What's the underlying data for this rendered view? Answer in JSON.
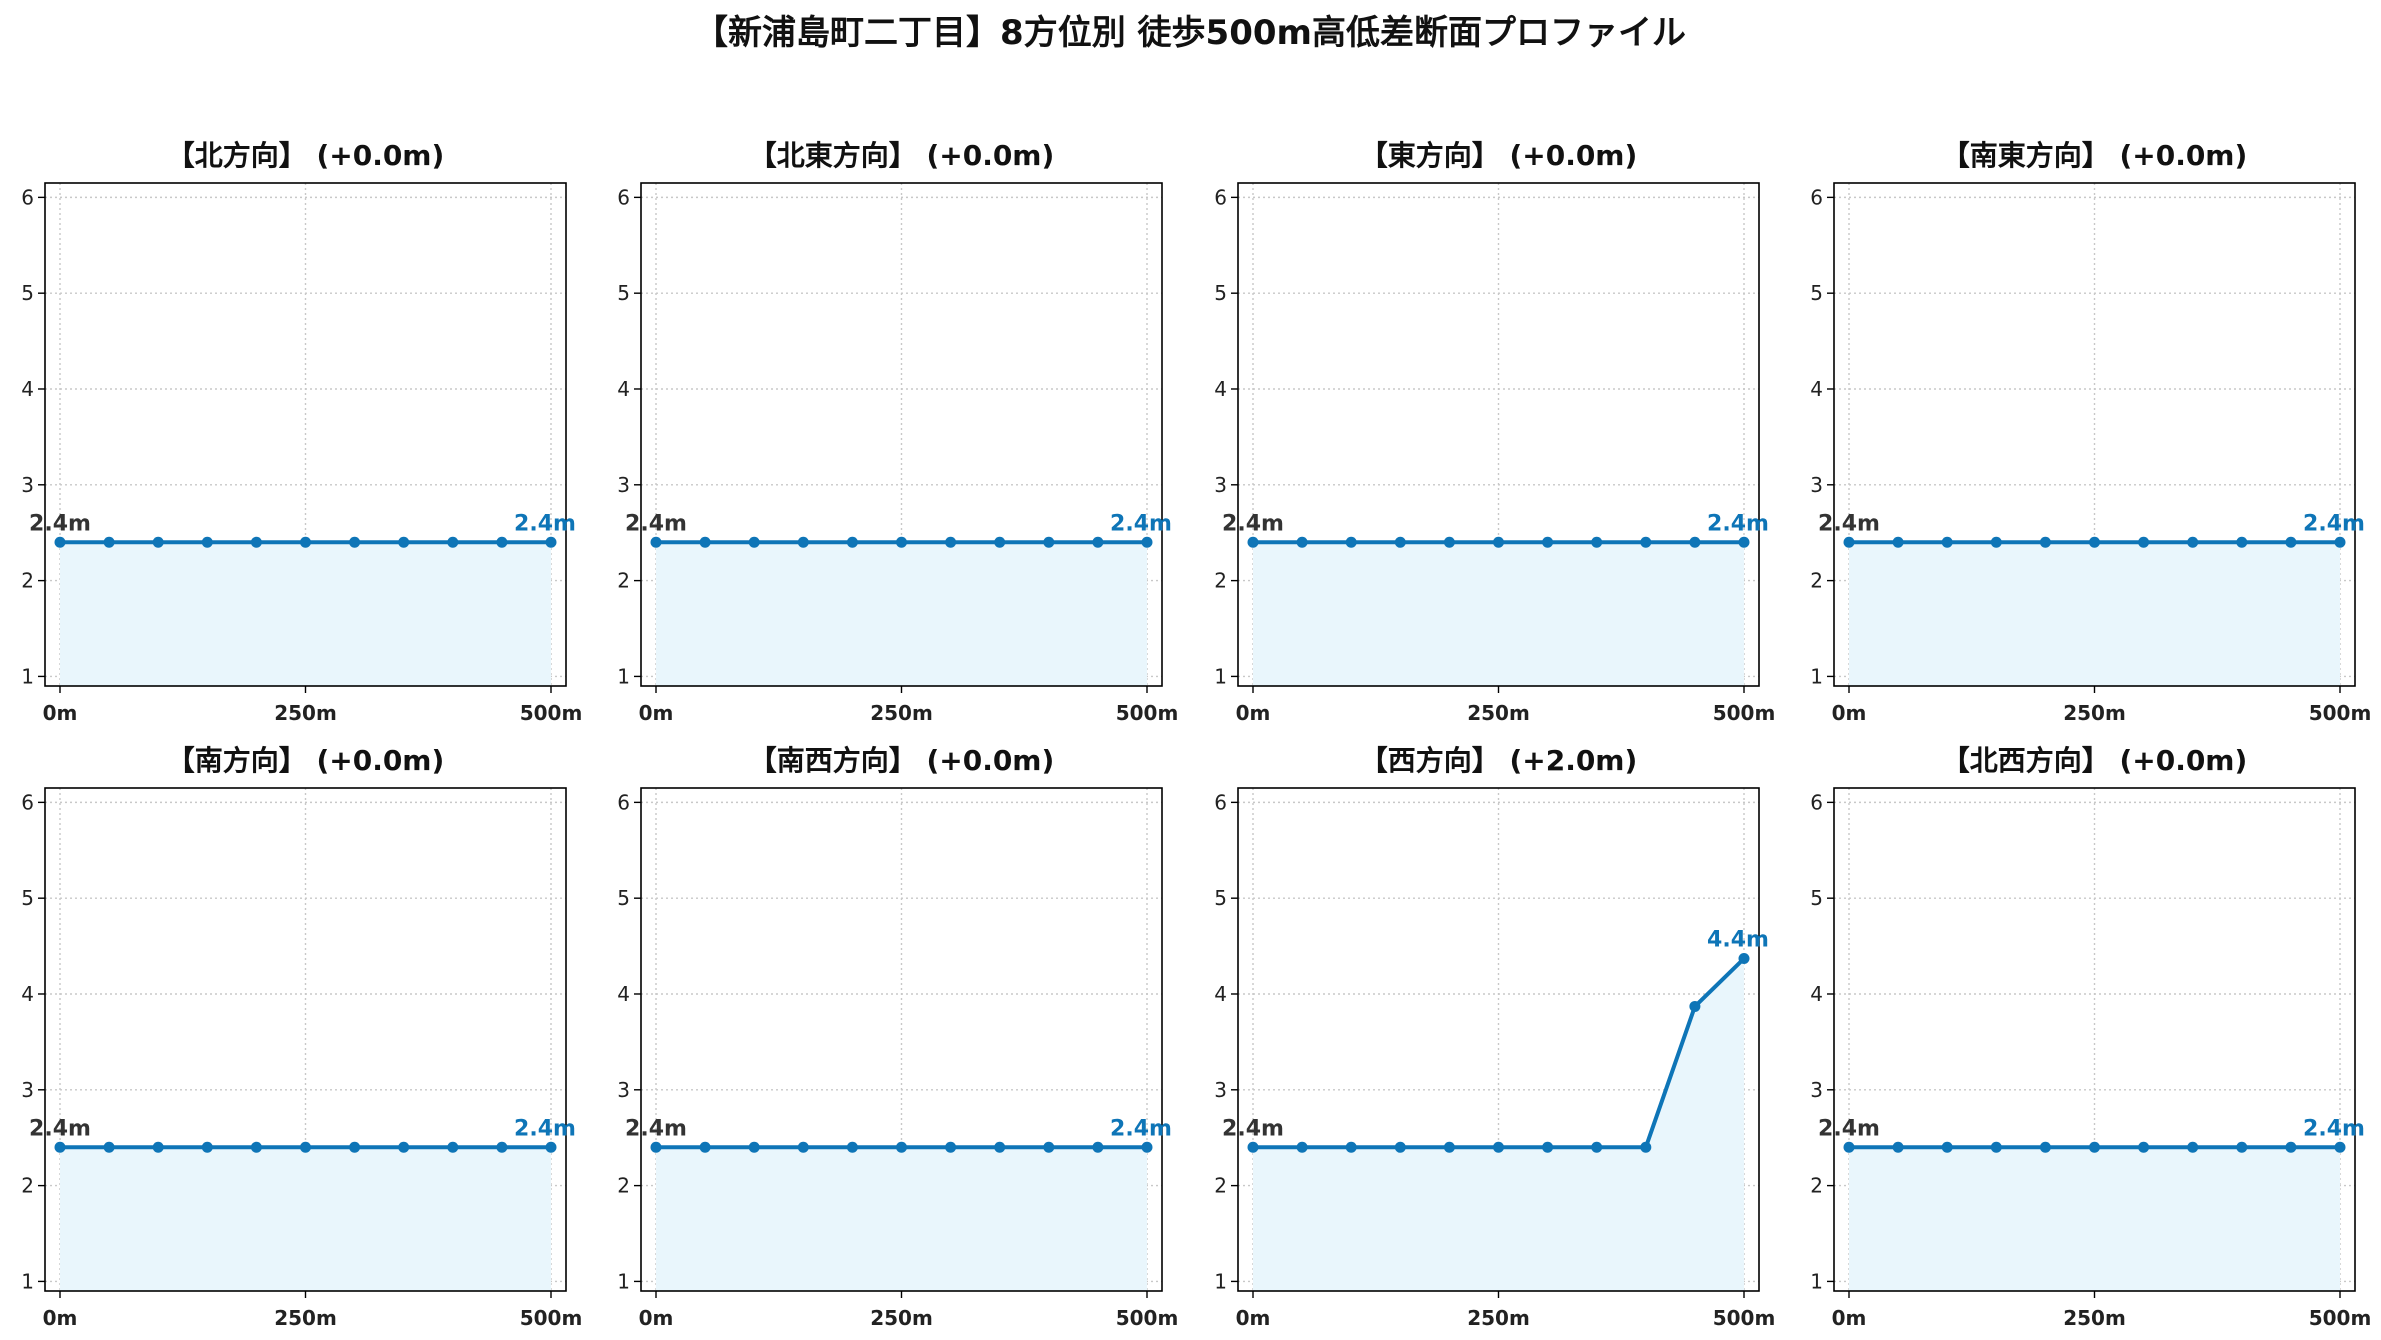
{
  "figure": {
    "title": "【新浦島町二丁目】8方位別 徒歩500m高低差断面プロファイル"
  },
  "colors": {
    "line": "#0e75b7",
    "fill": "#e9f6fc",
    "grid": "#c8c8c8",
    "axis": "#000000"
  },
  "chart_data": [
    {
      "type": "line",
      "title": "【北方向】 (+0.0m)",
      "x": [
        0,
        50,
        100,
        150,
        200,
        250,
        300,
        350,
        400,
        450,
        500
      ],
      "y": [
        2.4,
        2.4,
        2.4,
        2.4,
        2.4,
        2.4,
        2.4,
        2.4,
        2.4,
        2.4,
        2.4
      ],
      "xticks": [
        "0m",
        "250m",
        "500m"
      ],
      "yticks": [
        "1",
        "2",
        "3",
        "4",
        "5",
        "6"
      ],
      "ylim": [
        0.9,
        6.15
      ],
      "start_label": "2.4m",
      "end_label": "2.4m",
      "grid": true
    },
    {
      "type": "line",
      "title": "【北東方向】 (+0.0m)",
      "x": [
        0,
        50,
        100,
        150,
        200,
        250,
        300,
        350,
        400,
        450,
        500
      ],
      "y": [
        2.4,
        2.4,
        2.4,
        2.4,
        2.4,
        2.4,
        2.4,
        2.4,
        2.4,
        2.4,
        2.4
      ],
      "xticks": [
        "0m",
        "250m",
        "500m"
      ],
      "yticks": [
        "1",
        "2",
        "3",
        "4",
        "5",
        "6"
      ],
      "ylim": [
        0.9,
        6.15
      ],
      "start_label": "2.4m",
      "end_label": "2.4m",
      "grid": true
    },
    {
      "type": "line",
      "title": "【東方向】 (+0.0m)",
      "x": [
        0,
        50,
        100,
        150,
        200,
        250,
        300,
        350,
        400,
        450,
        500
      ],
      "y": [
        2.4,
        2.4,
        2.4,
        2.4,
        2.4,
        2.4,
        2.4,
        2.4,
        2.4,
        2.4,
        2.4
      ],
      "xticks": [
        "0m",
        "250m",
        "500m"
      ],
      "yticks": [
        "1",
        "2",
        "3",
        "4",
        "5",
        "6"
      ],
      "ylim": [
        0.9,
        6.15
      ],
      "start_label": "2.4m",
      "end_label": "2.4m",
      "grid": true
    },
    {
      "type": "line",
      "title": "【南東方向】 (+0.0m)",
      "x": [
        0,
        50,
        100,
        150,
        200,
        250,
        300,
        350,
        400,
        450,
        500
      ],
      "y": [
        2.4,
        2.4,
        2.4,
        2.4,
        2.4,
        2.4,
        2.4,
        2.4,
        2.4,
        2.4,
        2.4
      ],
      "xticks": [
        "0m",
        "250m",
        "500m"
      ],
      "yticks": [
        "1",
        "2",
        "3",
        "4",
        "5",
        "6"
      ],
      "ylim": [
        0.9,
        6.15
      ],
      "start_label": "2.4m",
      "end_label": "2.4m",
      "grid": true
    },
    {
      "type": "line",
      "title": "【南方向】 (+0.0m)",
      "x": [
        0,
        50,
        100,
        150,
        200,
        250,
        300,
        350,
        400,
        450,
        500
      ],
      "y": [
        2.4,
        2.4,
        2.4,
        2.4,
        2.4,
        2.4,
        2.4,
        2.4,
        2.4,
        2.4,
        2.4
      ],
      "xticks": [
        "0m",
        "250m",
        "500m"
      ],
      "yticks": [
        "1",
        "2",
        "3",
        "4",
        "5",
        "6"
      ],
      "ylim": [
        0.9,
        6.15
      ],
      "start_label": "2.4m",
      "end_label": "2.4m",
      "grid": true
    },
    {
      "type": "line",
      "title": "【南西方向】 (+0.0m)",
      "x": [
        0,
        50,
        100,
        150,
        200,
        250,
        300,
        350,
        400,
        450,
        500
      ],
      "y": [
        2.4,
        2.4,
        2.4,
        2.4,
        2.4,
        2.4,
        2.4,
        2.4,
        2.4,
        2.4,
        2.4
      ],
      "xticks": [
        "0m",
        "250m",
        "500m"
      ],
      "yticks": [
        "1",
        "2",
        "3",
        "4",
        "5",
        "6"
      ],
      "ylim": [
        0.9,
        6.15
      ],
      "start_label": "2.4m",
      "end_label": "2.4m",
      "grid": true
    },
    {
      "type": "line",
      "title": "【西方向】 (+2.0m)",
      "x": [
        0,
        50,
        100,
        150,
        200,
        250,
        300,
        350,
        400,
        450,
        500
      ],
      "y": [
        2.4,
        2.4,
        2.4,
        2.4,
        2.4,
        2.4,
        2.4,
        2.4,
        2.4,
        3.87,
        4.37
      ],
      "xticks": [
        "0m",
        "250m",
        "500m"
      ],
      "yticks": [
        "1",
        "2",
        "3",
        "4",
        "5",
        "6"
      ],
      "ylim": [
        0.9,
        6.15
      ],
      "start_label": "2.4m",
      "end_label": "4.4m",
      "grid": true
    },
    {
      "type": "line",
      "title": "【北西方向】 (+0.0m)",
      "x": [
        0,
        50,
        100,
        150,
        200,
        250,
        300,
        350,
        400,
        450,
        500
      ],
      "y": [
        2.4,
        2.4,
        2.4,
        2.4,
        2.4,
        2.4,
        2.4,
        2.4,
        2.4,
        2.4,
        2.4
      ],
      "xticks": [
        "0m",
        "250m",
        "500m"
      ],
      "yticks": [
        "1",
        "2",
        "3",
        "4",
        "5",
        "6"
      ],
      "ylim": [
        0.9,
        6.15
      ],
      "start_label": "2.4m",
      "end_label": "2.4m",
      "grid": true
    }
  ]
}
